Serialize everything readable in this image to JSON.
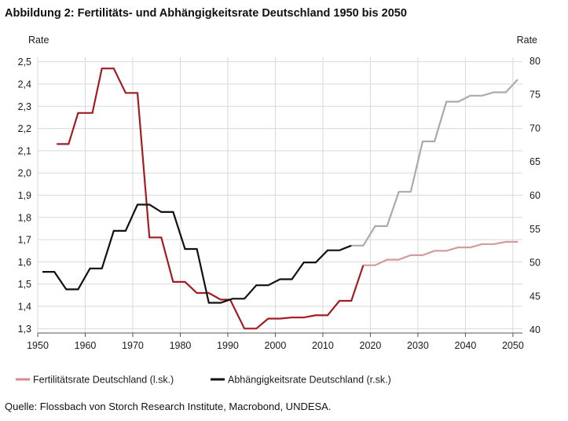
{
  "figure": {
    "title": "Abbildung 2: Fertilitäts- und Abhängigkeitsrate Deutschland 1950 bis 2050",
    "source": "Quelle: Flossbach von Storch Research Institute, Macrobond, UNDESA."
  },
  "chart_data": {
    "type": "line",
    "x_ticks": [
      1950,
      1960,
      1970,
      1980,
      1990,
      2000,
      2010,
      2020,
      2030,
      2040,
      2050
    ],
    "xlim": [
      1950,
      2052
    ],
    "y_left": {
      "label": "Rate",
      "lim": [
        1.28,
        2.52
      ],
      "ticks": [
        1.3,
        1.4,
        1.5,
        1.6,
        1.7,
        1.8,
        1.9,
        2.0,
        2.1,
        2.2,
        2.3,
        2.4,
        2.5
      ],
      "tick_labels": [
        "1,3",
        "1,4",
        "1,5",
        "1,6",
        "1,7",
        "1,8",
        "1,9",
        "2,0",
        "2,1",
        "2,2",
        "2,3",
        "2,4",
        "2,5"
      ]
    },
    "y_right": {
      "label": "Rate",
      "lim": [
        39.5,
        80.5
      ],
      "ticks": [
        40,
        45,
        50,
        55,
        60,
        65,
        70,
        75,
        80
      ],
      "tick_labels": [
        "40",
        "45",
        "50",
        "55",
        "60",
        "65",
        "70",
        "75",
        "80"
      ]
    },
    "grid": true,
    "legend_position": "bottom-left",
    "series": [
      {
        "name": "Fertilitätsrate Deutschland (l.sk.)",
        "axis": "left",
        "color": "#a11d21",
        "projection_color": "#d49a9c",
        "projection_from": 2018.5,
        "legend_color": "#d98a8c",
        "points": [
          [
            1954,
            2.13
          ],
          [
            1956.5,
            2.13
          ],
          [
            1958.5,
            2.27
          ],
          [
            1961.5,
            2.27
          ],
          [
            1963.5,
            2.47
          ],
          [
            1966,
            2.47
          ],
          [
            1968.5,
            2.36
          ],
          [
            1971,
            2.36
          ],
          [
            1973.5,
            1.71
          ],
          [
            1976,
            1.71
          ],
          [
            1978.5,
            1.51
          ],
          [
            1981,
            1.51
          ],
          [
            1983.5,
            1.46
          ],
          [
            1986,
            1.46
          ],
          [
            1988.5,
            1.43
          ],
          [
            1990.5,
            1.43
          ],
          [
            1993.5,
            1.3
          ],
          [
            1996,
            1.3
          ],
          [
            1998.5,
            1.345
          ],
          [
            2001,
            1.345
          ],
          [
            2003.5,
            1.35
          ],
          [
            2006,
            1.35
          ],
          [
            2008.5,
            1.36
          ],
          [
            2011,
            1.36
          ],
          [
            2013.5,
            1.425
          ],
          [
            2016,
            1.425
          ],
          [
            2018.5,
            1.585
          ],
          [
            2021,
            1.585
          ],
          [
            2023.5,
            1.61
          ],
          [
            2026,
            1.61
          ],
          [
            2028.5,
            1.63
          ],
          [
            2031,
            1.63
          ],
          [
            2033.5,
            1.65
          ],
          [
            2036,
            1.65
          ],
          [
            2038.5,
            1.665
          ],
          [
            2041,
            1.665
          ],
          [
            2043.5,
            1.68
          ],
          [
            2046,
            1.68
          ],
          [
            2048.5,
            1.69
          ],
          [
            2051,
            1.69
          ]
        ]
      },
      {
        "name": "Abhängigkeitsrate Deutschland (r.sk.)",
        "axis": "right",
        "color": "#111111",
        "projection_color": "#aaaaaa",
        "projection_from": 2016,
        "legend_color": "#111111",
        "points": [
          [
            1951,
            48.6
          ],
          [
            1953.5,
            48.6
          ],
          [
            1956,
            46.0
          ],
          [
            1958.5,
            46.0
          ],
          [
            1961,
            49.1
          ],
          [
            1963.5,
            49.1
          ],
          [
            1966,
            54.7
          ],
          [
            1968.5,
            54.7
          ],
          [
            1971,
            58.6
          ],
          [
            1973.5,
            58.6
          ],
          [
            1976,
            57.5
          ],
          [
            1978.5,
            57.5
          ],
          [
            1981,
            52.0
          ],
          [
            1983.5,
            52.0
          ],
          [
            1986,
            44.0
          ],
          [
            1988.5,
            44.0
          ],
          [
            1991,
            44.6
          ],
          [
            1993.5,
            44.6
          ],
          [
            1996,
            46.6
          ],
          [
            1998.5,
            46.6
          ],
          [
            2001,
            47.5
          ],
          [
            2003.5,
            47.5
          ],
          [
            2006,
            50.0
          ],
          [
            2008.5,
            50.0
          ],
          [
            2011,
            51.8
          ],
          [
            2013.5,
            51.8
          ],
          [
            2016,
            52.5
          ],
          [
            2018.5,
            52.5
          ],
          [
            2021,
            55.4
          ],
          [
            2023.5,
            55.4
          ],
          [
            2026,
            60.5
          ],
          [
            2028.5,
            60.5
          ],
          [
            2031,
            68.0
          ],
          [
            2033.5,
            68.0
          ],
          [
            2036,
            73.9
          ],
          [
            2038.5,
            73.9
          ],
          [
            2041,
            74.8
          ],
          [
            2043.5,
            74.8
          ],
          [
            2046,
            75.3
          ],
          [
            2048.5,
            75.3
          ],
          [
            2051,
            77.2
          ]
        ]
      }
    ]
  }
}
